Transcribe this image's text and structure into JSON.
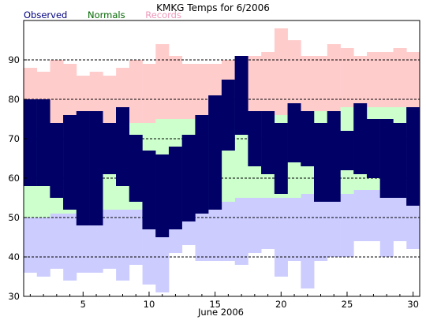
{
  "chart_data": {
    "type": "bar",
    "title": "KMKG Temps for 6/2006",
    "xlabel": "June 2006",
    "ylabel": "",
    "ylim": [
      30,
      100
    ],
    "xlim": [
      0.5,
      30.5
    ],
    "yticks": [
      30,
      40,
      50,
      60,
      70,
      80,
      90
    ],
    "xticks": [
      5,
      10,
      15,
      20,
      25,
      30
    ],
    "grid": "dashed horizontal at 40, 50, 60, 70, 80, 90",
    "legend": [
      "Observed",
      "Normals",
      "Records"
    ],
    "colors": {
      "observed": "#000066",
      "normals": "#ccffcc",
      "records_high": "#ffcccc",
      "records_low": "#ccccff",
      "legend_observed": "#000080",
      "legend_normals": "#006600",
      "legend_records": "#ee99bb"
    },
    "days": [
      1,
      2,
      3,
      4,
      5,
      6,
      7,
      8,
      9,
      10,
      11,
      12,
      13,
      14,
      15,
      16,
      17,
      18,
      19,
      20,
      21,
      22,
      23,
      24,
      25,
      26,
      27,
      28,
      29,
      30
    ],
    "observed_high": [
      80,
      80,
      74,
      76,
      77,
      77,
      74,
      78,
      71,
      67,
      66,
      68,
      71,
      76,
      81,
      85,
      91,
      77,
      77,
      74,
      79,
      77,
      74,
      77,
      72,
      79,
      75,
      75,
      74,
      78
    ],
    "observed_low": [
      58,
      58,
      55,
      52,
      48,
      48,
      61,
      58,
      54,
      47,
      45,
      47,
      49,
      51,
      52,
      67,
      71,
      63,
      61,
      56,
      64,
      63,
      54,
      54,
      62,
      61,
      60,
      55,
      55,
      53
    ],
    "normal_high": [
      73,
      73,
      73,
      73,
      74,
      74,
      74,
      74,
      74,
      74,
      75,
      75,
      75,
      75,
      75,
      76,
      76,
      76,
      76,
      76,
      76,
      77,
      77,
      77,
      78,
      78,
      78,
      78,
      78,
      78
    ],
    "normal_low": [
      50,
      50,
      51,
      51,
      51,
      51,
      52,
      52,
      52,
      53,
      53,
      53,
      53,
      53,
      54,
      54,
      55,
      55,
      55,
      55,
      55,
      56,
      56,
      56,
      56,
      57,
      57,
      57,
      57,
      57
    ],
    "record_high": [
      88,
      87,
      90,
      89,
      86,
      87,
      86,
      88,
      90,
      89,
      94,
      91,
      89,
      89,
      89,
      90,
      91,
      91,
      92,
      98,
      95,
      91,
      91,
      94,
      93,
      91,
      92,
      92,
      93,
      92
    ],
    "record_low": [
      36,
      35,
      37,
      34,
      36,
      36,
      37,
      34,
      38,
      33,
      31,
      41,
      43,
      39,
      39,
      39,
      38,
      41,
      42,
      35,
      39,
      32,
      39,
      40,
      40,
      44,
      44,
      40,
      44,
      42
    ]
  }
}
